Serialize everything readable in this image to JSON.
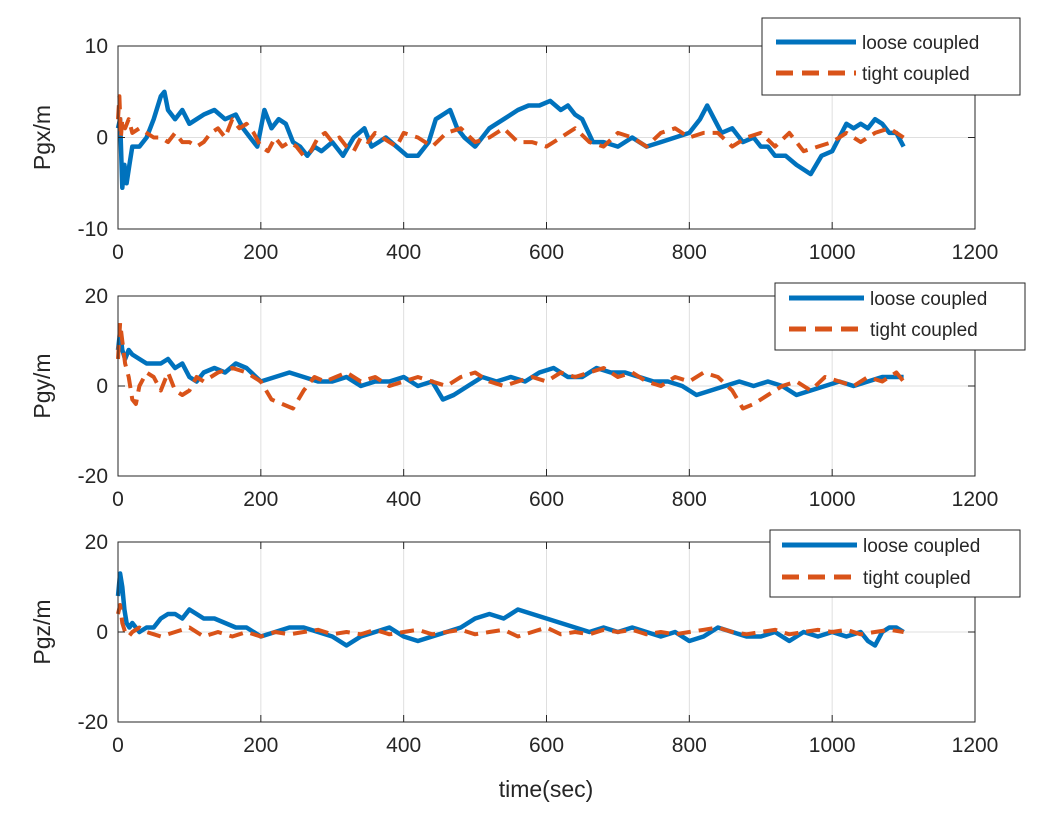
{
  "figure": {
    "xlabel": "time(sec)"
  },
  "chart_data": [
    {
      "type": "line",
      "title": "",
      "xlabel": "",
      "ylabel": "Pgx/m",
      "xlim": [
        0,
        1200
      ],
      "ylim": [
        -10,
        10
      ],
      "xticks": [
        0,
        200,
        400,
        600,
        800,
        1000,
        1200
      ],
      "yticks": [
        -10,
        0,
        10
      ],
      "grid": true,
      "legend": "top-right",
      "series": [
        {
          "name": "loose coupled",
          "color": "#0072BD",
          "style": "solid",
          "x": [
            0,
            3,
            6,
            9,
            12,
            16,
            20,
            30,
            40,
            50,
            60,
            65,
            70,
            80,
            90,
            100,
            110,
            120,
            135,
            150,
            165,
            175,
            185,
            195,
            205,
            215,
            225,
            235,
            245,
            255,
            265,
            275,
            285,
            300,
            315,
            330,
            345,
            355,
            365,
            375,
            390,
            405,
            420,
            435,
            445,
            455,
            465,
            475,
            485,
            500,
            520,
            540,
            560,
            575,
            590,
            605,
            620,
            630,
            640,
            650,
            665,
            680,
            700,
            720,
            740,
            760,
            780,
            800,
            815,
            825,
            835,
            845,
            860,
            875,
            890,
            900,
            910,
            920,
            935,
            950,
            960,
            970,
            985,
            1000,
            1010,
            1020,
            1030,
            1040,
            1050,
            1060,
            1070,
            1080,
            1090,
            1100
          ],
          "y": [
            1,
            2,
            -5.5,
            -3,
            -5,
            -3,
            -1,
            -1,
            0,
            2,
            4.5,
            5,
            3,
            2,
            3,
            1.5,
            2,
            2.5,
            3,
            2,
            2.5,
            1,
            0,
            -1,
            3,
            1,
            2,
            1.5,
            -0.5,
            -1,
            -2,
            -1,
            -1.5,
            -0.5,
            -2,
            0,
            1,
            -1,
            -0.5,
            0,
            -1,
            -2,
            -2,
            -0.5,
            2,
            2.5,
            3,
            1,
            0,
            -1,
            1,
            2,
            3,
            3.5,
            3.5,
            4,
            3,
            3.5,
            2.5,
            2,
            -0.5,
            -0.5,
            -1,
            0,
            -1,
            -0.5,
            0,
            0.5,
            2,
            3.5,
            2,
            0.5,
            1,
            -0.5,
            0,
            -1,
            -1,
            -2,
            -2,
            -3,
            -3.5,
            -4,
            -2,
            -1.5,
            0,
            1.5,
            1,
            1.5,
            1,
            2,
            1.5,
            0.5,
            0.5,
            -1
          ]
        },
        {
          "name": "tight coupled",
          "color": "#D95319",
          "style": "dashed",
          "x": [
            0,
            2,
            4,
            6,
            10,
            15,
            20,
            30,
            40,
            50,
            60,
            70,
            80,
            90,
            100,
            110,
            120,
            130,
            140,
            150,
            160,
            170,
            180,
            190,
            200,
            210,
            220,
            230,
            240,
            250,
            260,
            270,
            280,
            290,
            300,
            310,
            320,
            330,
            340,
            350,
            360,
            370,
            380,
            390,
            400,
            420,
            440,
            460,
            480,
            500,
            520,
            540,
            560,
            580,
            600,
            620,
            640,
            660,
            680,
            700,
            720,
            740,
            760,
            780,
            800,
            820,
            840,
            860,
            880,
            900,
            920,
            940,
            960,
            980,
            1000,
            1020,
            1040,
            1060,
            1080,
            1100
          ],
          "y": [
            2,
            4.5,
            0,
            2,
            1,
            2,
            0.5,
            1,
            0.5,
            0,
            0,
            -0.5,
            0.5,
            -0.5,
            -0.5,
            -1,
            -0.5,
            0.5,
            1,
            0,
            2,
            1,
            1.5,
            0.5,
            -1,
            -1.5,
            0,
            -1,
            -0.5,
            -1,
            -2,
            -1.5,
            0,
            0.5,
            -0.5,
            0,
            -1,
            -1.5,
            0,
            -0.5,
            0.5,
            0,
            -0.5,
            -1,
            0.5,
            0,
            -1,
            0.5,
            1,
            -0.5,
            0,
            1,
            -0.5,
            -0.5,
            -1,
            0,
            1,
            -0.5,
            -1,
            0.5,
            0,
            -1,
            0.5,
            1,
            0,
            0.5,
            0.5,
            -1,
            0,
            0.5,
            -1,
            0.5,
            -1.5,
            -1,
            -0.5,
            0.5,
            -0.5,
            0.5,
            1,
            0
          ]
        }
      ]
    },
    {
      "type": "line",
      "title": "",
      "xlabel": "",
      "ylabel": "Pgy/m",
      "xlim": [
        0,
        1200
      ],
      "ylim": [
        -20,
        20
      ],
      "xticks": [
        0,
        200,
        400,
        600,
        800,
        1000,
        1200
      ],
      "yticks": [
        -20,
        0,
        20
      ],
      "grid": true,
      "legend": "top-right",
      "series": [
        {
          "name": "loose coupled",
          "color": "#0072BD",
          "style": "solid",
          "x": [
            0,
            3,
            6,
            10,
            15,
            20,
            30,
            40,
            50,
            60,
            70,
            80,
            90,
            100,
            110,
            120,
            135,
            150,
            165,
            180,
            200,
            220,
            240,
            260,
            280,
            300,
            320,
            340,
            360,
            380,
            400,
            420,
            440,
            455,
            470,
            490,
            510,
            530,
            550,
            570,
            590,
            610,
            630,
            650,
            670,
            690,
            710,
            730,
            750,
            770,
            790,
            810,
            830,
            850,
            870,
            890,
            910,
            930,
            950,
            970,
            990,
            1010,
            1030,
            1050,
            1070,
            1090,
            1100
          ],
          "y": [
            8,
            12,
            8,
            6,
            8,
            7,
            6,
            5,
            5,
            5,
            6,
            4,
            5,
            2,
            1,
            3,
            4,
            3,
            5,
            4,
            1,
            2,
            3,
            2,
            1,
            1,
            2,
            0,
            1,
            1,
            2,
            0,
            1,
            -3,
            -2,
            0,
            2,
            1,
            2,
            1,
            3,
            4,
            2,
            2,
            4,
            3,
            3,
            2,
            1,
            1,
            0,
            -2,
            -1,
            0,
            1,
            0,
            1,
            0,
            -2,
            -1,
            0,
            1,
            0,
            1,
            2,
            2,
            2
          ]
        },
        {
          "name": "tight coupled",
          "color": "#D95319",
          "style": "dashed",
          "x": [
            0,
            3,
            6,
            10,
            15,
            20,
            25,
            30,
            40,
            50,
            60,
            70,
            80,
            90,
            100,
            110,
            120,
            140,
            160,
            180,
            200,
            215,
            230,
            245,
            260,
            275,
            290,
            305,
            320,
            340,
            360,
            380,
            400,
            420,
            440,
            460,
            480,
            500,
            520,
            540,
            560,
            580,
            600,
            620,
            640,
            660,
            680,
            700,
            720,
            740,
            760,
            780,
            800,
            820,
            840,
            860,
            875,
            890,
            910,
            930,
            950,
            970,
            990,
            1010,
            1030,
            1050,
            1070,
            1090,
            1100
          ],
          "y": [
            6,
            14,
            10,
            5,
            2,
            -3,
            -4,
            0,
            3,
            2,
            -1,
            3,
            -1,
            -2,
            -1,
            2,
            1,
            3,
            4,
            3,
            1,
            -3,
            -4,
            -5,
            -1,
            2,
            1,
            2,
            3,
            1,
            2,
            0,
            1,
            2,
            1,
            0,
            2,
            3,
            1,
            0,
            1,
            2,
            1,
            3,
            2,
            3,
            4,
            2,
            3,
            1,
            0,
            2,
            1,
            3,
            2,
            -1,
            -5,
            -4,
            -2,
            0,
            1,
            -1,
            2,
            1,
            0,
            2,
            1,
            3,
            1
          ]
        }
      ]
    },
    {
      "type": "line",
      "title": "",
      "xlabel": "time(sec)",
      "ylabel": "Pgz/m",
      "xlim": [
        0,
        1200
      ],
      "ylim": [
        -20,
        20
      ],
      "xticks": [
        0,
        200,
        400,
        600,
        800,
        1000,
        1200
      ],
      "yticks": [
        -20,
        0,
        20
      ],
      "grid": true,
      "legend": "top-right",
      "series": [
        {
          "name": "loose coupled",
          "color": "#0072BD",
          "style": "solid",
          "x": [
            0,
            3,
            6,
            9,
            12,
            16,
            20,
            30,
            40,
            50,
            60,
            70,
            80,
            90,
            100,
            110,
            120,
            135,
            150,
            165,
            180,
            200,
            220,
            240,
            260,
            280,
            300,
            320,
            340,
            360,
            380,
            400,
            420,
            440,
            460,
            480,
            500,
            520,
            540,
            560,
            580,
            600,
            620,
            640,
            660,
            680,
            700,
            720,
            740,
            760,
            780,
            800,
            820,
            840,
            860,
            880,
            900,
            920,
            940,
            960,
            980,
            1000,
            1020,
            1040,
            1050,
            1060,
            1070,
            1080,
            1090,
            1100
          ],
          "y": [
            8,
            13,
            10,
            5,
            2,
            1,
            2,
            0,
            1,
            1,
            3,
            4,
            4,
            3,
            5,
            4,
            3,
            3,
            2,
            1,
            1,
            -1,
            0,
            1,
            1,
            0,
            -1,
            -3,
            -1,
            0,
            1,
            -1,
            -2,
            -1,
            0,
            1,
            3,
            4,
            3,
            5,
            4,
            3,
            2,
            1,
            0,
            1,
            0,
            1,
            0,
            -1,
            0,
            -2,
            -1,
            1,
            0,
            -1,
            -1,
            0,
            -2,
            0,
            -1,
            0,
            -1,
            0,
            -2,
            -3,
            0,
            1,
            1,
            0
          ]
        },
        {
          "name": "tight coupled",
          "color": "#D95319",
          "style": "dashed",
          "x": [
            0,
            3,
            6,
            10,
            15,
            20,
            30,
            40,
            60,
            80,
            100,
            120,
            140,
            160,
            180,
            200,
            220,
            240,
            260,
            280,
            300,
            320,
            340,
            360,
            380,
            400,
            420,
            440,
            460,
            480,
            500,
            520,
            540,
            560,
            580,
            600,
            620,
            640,
            660,
            680,
            700,
            720,
            740,
            760,
            780,
            800,
            820,
            840,
            860,
            880,
            900,
            920,
            940,
            960,
            980,
            1000,
            1020,
            1040,
            1060,
            1080,
            1100
          ],
          "y": [
            4,
            6,
            2,
            0,
            -1,
            0,
            1,
            0,
            -1,
            0,
            1,
            -1,
            0,
            -1,
            0,
            -1,
            0,
            -0.5,
            0,
            0.5,
            -0.5,
            0,
            -0.5,
            0.5,
            -0.5,
            0,
            0.5,
            -0.5,
            0,
            0.5,
            -0.5,
            0,
            0.5,
            -1,
            0,
            1,
            -0.5,
            0,
            -0.5,
            0.5,
            0,
            0.5,
            -0.5,
            0,
            -0.5,
            0,
            0.5,
            1,
            0,
            -0.5,
            0,
            0.5,
            -0.5,
            0,
            0.5,
            0,
            0.5,
            -0.5,
            0,
            0.5,
            0
          ]
        }
      ]
    }
  ]
}
